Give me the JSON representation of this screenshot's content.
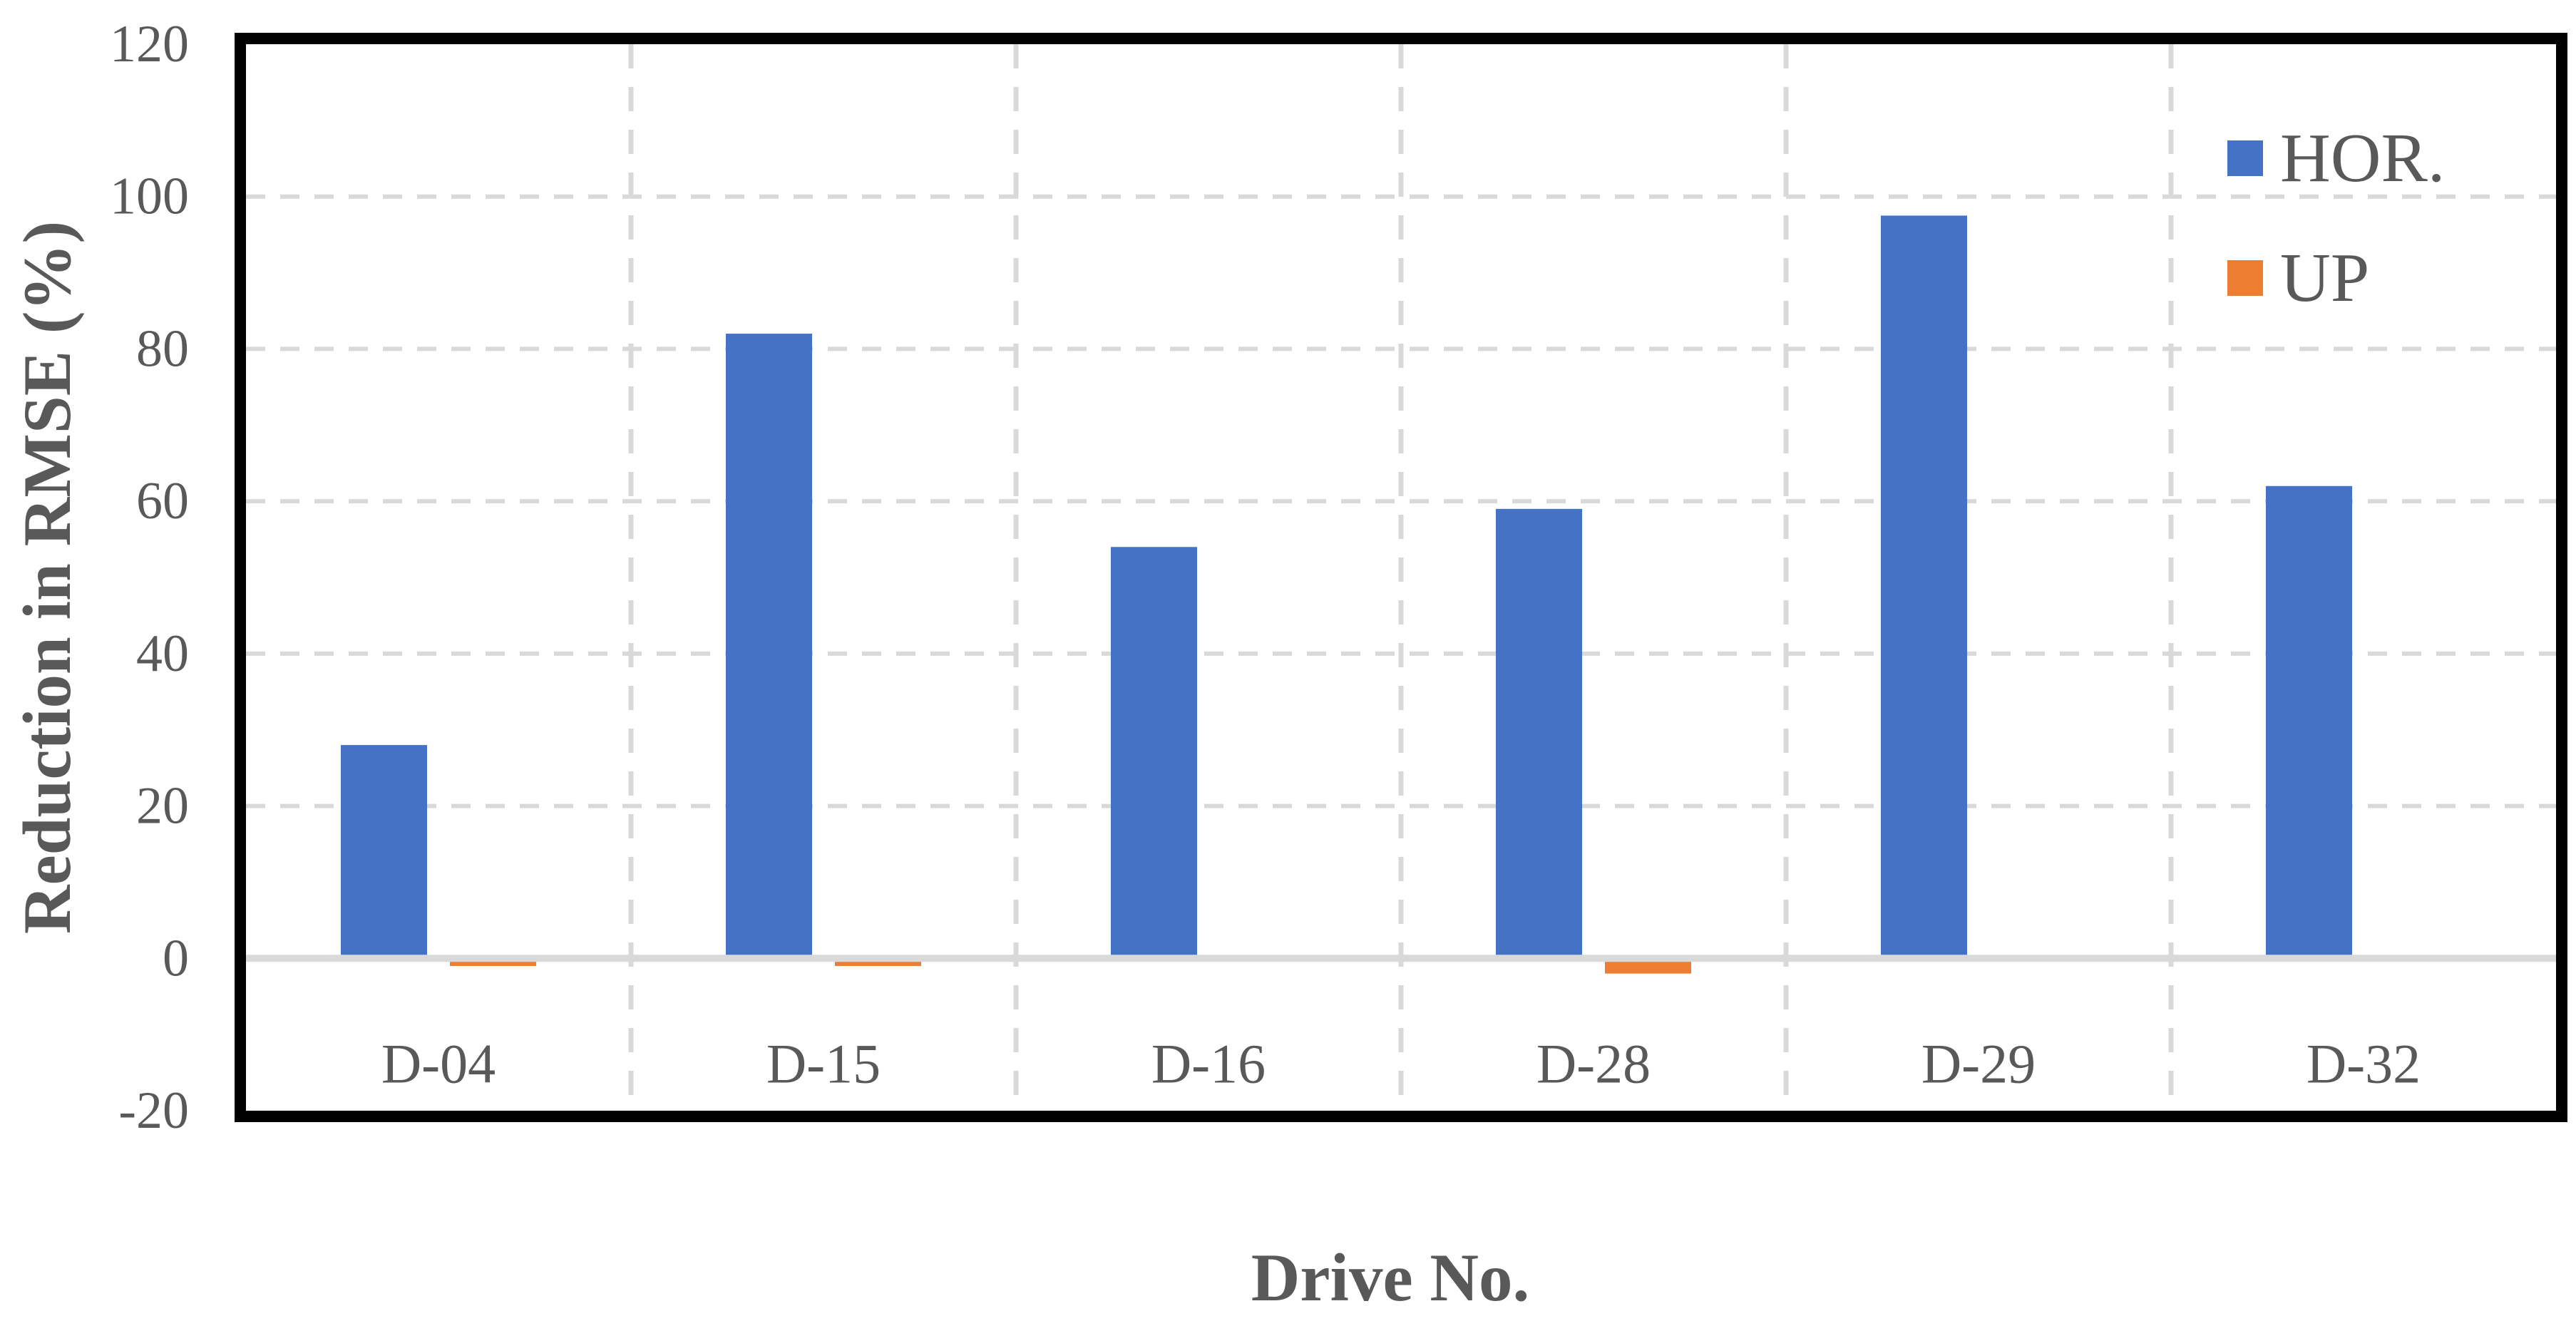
{
  "chart_data": {
    "type": "bar",
    "title": "",
    "categories": [
      "D-04",
      "D-15",
      "D-16",
      "D-28",
      "D-29",
      "D-32"
    ],
    "series": [
      {
        "name": "HOR.",
        "color": "#4472C4",
        "values": [
          28,
          82,
          54,
          59,
          97.5,
          62
        ]
      },
      {
        "name": "UP",
        "color": "#ED7D31",
        "values": [
          -1,
          -1,
          0,
          -2,
          0,
          0
        ]
      }
    ],
    "xlabel": "Drive No.",
    "ylabel": "Reduction in RMSE (%)",
    "ylim": [
      -20,
      120
    ],
    "yticks": [
      120,
      100,
      80,
      60,
      40,
      20,
      0,
      -20
    ],
    "grid": "dashed",
    "legend_position": "top-right-inside"
  },
  "colors": {
    "text": "#595959",
    "gridline": "#D9D9D9",
    "zero_line": "#D9D9D9",
    "plot_border": "#000000",
    "background": "#FFFFFF"
  }
}
